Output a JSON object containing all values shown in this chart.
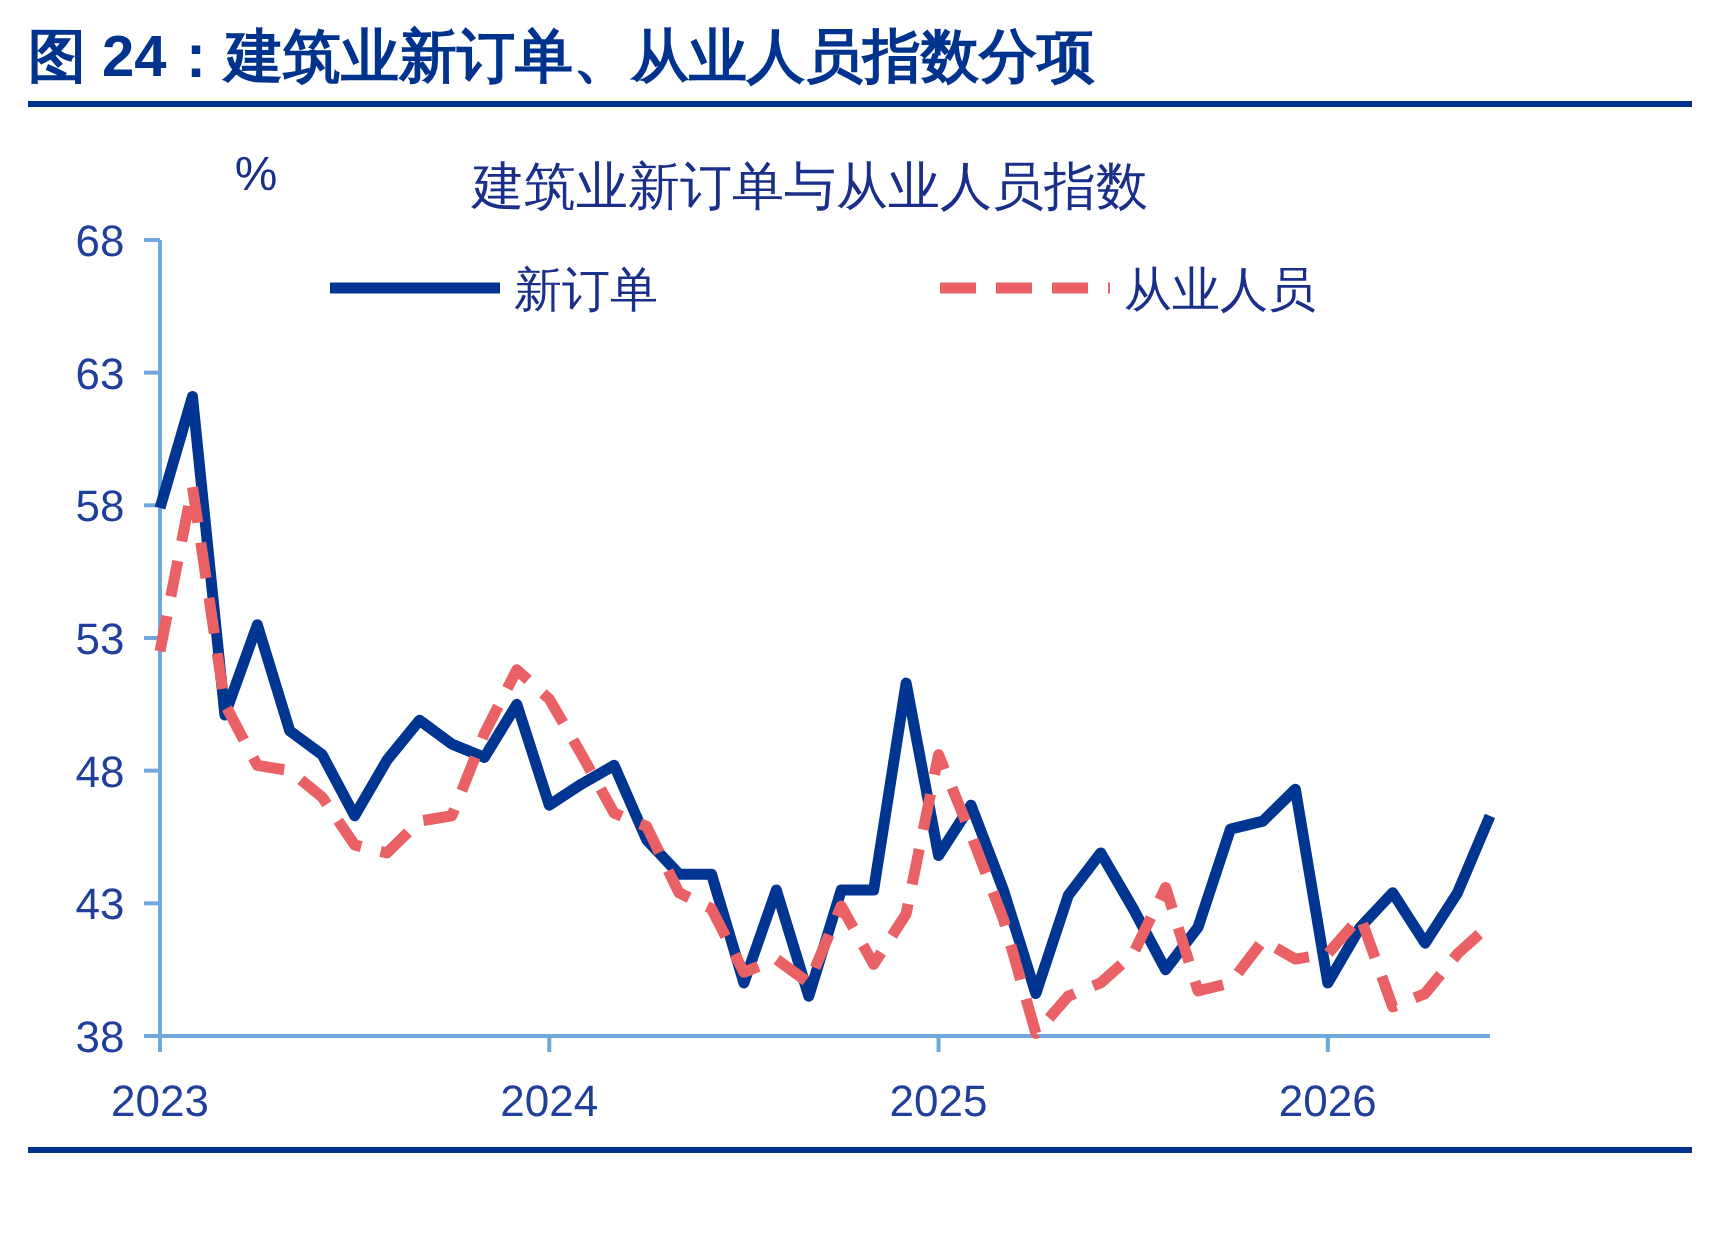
{
  "chart_data": {
    "type": "line",
    "title": "图 24：建筑业新订单、从业人员指数分项",
    "subtitle": "建筑业新订单与从业人员指数",
    "ylabel": "%",
    "x": [
      "2023-01",
      "2023-02",
      "2023-03",
      "2023-04",
      "2023-05",
      "2023-06",
      "2023-07",
      "2023-08",
      "2023-09",
      "2023-10",
      "2023-11",
      "2023-12",
      "2024-01",
      "2024-02",
      "2024-03",
      "2024-04",
      "2024-05",
      "2024-06",
      "2024-07",
      "2024-08",
      "2024-09",
      "2024-10",
      "2024-11",
      "2024-12",
      "2025-01",
      "2025-02",
      "2025-03",
      "2025-04",
      "2025-05",
      "2025-06",
      "2025-07",
      "2025-08",
      "2025-09",
      "2025-10",
      "2025-11",
      "2025-12",
      "2026-01",
      "2026-02",
      "2026-03",
      "2026-04",
      "2026-05",
      "2026-06"
    ],
    "series": [
      {
        "name": "新订单",
        "color": "#003591",
        "line_style": "solid",
        "values": [
          57.9,
          62.1,
          50.1,
          53.5,
          49.5,
          48.6,
          46.3,
          48.4,
          49.9,
          49.0,
          48.5,
          50.5,
          46.7,
          47.5,
          48.2,
          45.4,
          44.1,
          44.1,
          40.0,
          43.5,
          39.5,
          43.5,
          43.5,
          51.3,
          44.8,
          46.7,
          43.5,
          39.6,
          43.3,
          44.9,
          42.8,
          40.5,
          42.1,
          45.8,
          46.1,
          47.3,
          40.0,
          42.1,
          43.4,
          41.5,
          43.4,
          46.3
        ]
      },
      {
        "name": "从业人员",
        "color": "#e96065",
        "line_style": "dashed",
        "values": [
          52.5,
          58.7,
          50.5,
          48.2,
          48.0,
          47.0,
          45.2,
          44.9,
          46.1,
          46.3,
          49.4,
          51.8,
          50.7,
          48.6,
          46.4,
          45.9,
          43.4,
          42.8,
          40.4,
          40.9,
          40.0,
          42.9,
          40.7,
          42.6,
          48.6,
          45.6,
          42.4,
          38.1,
          39.5,
          40.0,
          41.1,
          43.6,
          39.7,
          40.0,
          41.6,
          40.9,
          41.1,
          42.5,
          39.1,
          39.6,
          41.1,
          42.2
        ]
      }
    ],
    "xlim": [
      "2023-01",
      "2026-06"
    ],
    "xticks": [
      {
        "value": "2023-01",
        "label": "2023"
      },
      {
        "value": "2024-01",
        "label": "2024"
      },
      {
        "value": "2025-01",
        "label": "2025"
      },
      {
        "value": "2026-01",
        "label": "2026"
      }
    ],
    "ylim": [
      38,
      68
    ],
    "yticks": [
      38,
      43,
      48,
      53,
      58,
      63,
      68
    ],
    "legend": "top",
    "marker": "none"
  }
}
